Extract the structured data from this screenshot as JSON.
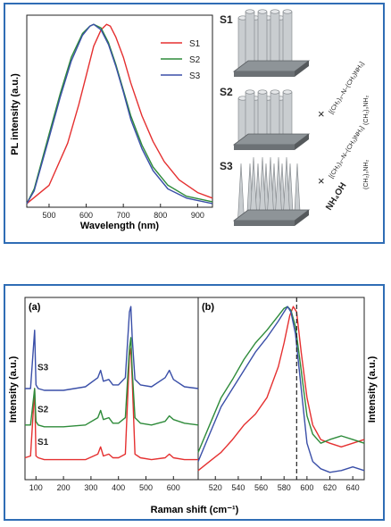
{
  "chart_data": [
    {
      "id": "pl",
      "type": "line",
      "xlabel": "Wavelength (nm)",
      "ylabel": "PL intensity (a.u.)",
      "xlim": [
        440,
        940
      ],
      "ylim": [
        0,
        1.05
      ],
      "xticks": [
        500,
        600,
        700,
        800,
        900
      ],
      "grid": false,
      "legend_position": "top-right",
      "series": [
        {
          "name": "S1",
          "color": "#e53030",
          "x": [
            440,
            500,
            550,
            580,
            600,
            620,
            640,
            655,
            665,
            680,
            700,
            720,
            750,
            780,
            810,
            850,
            900,
            940
          ],
          "y": [
            0.02,
            0.12,
            0.35,
            0.56,
            0.72,
            0.88,
            0.97,
            1.0,
            0.99,
            0.93,
            0.82,
            0.68,
            0.5,
            0.36,
            0.25,
            0.15,
            0.08,
            0.05
          ]
        },
        {
          "name": "S2",
          "color": "#2e8b3a",
          "x": [
            440,
            460,
            500,
            530,
            560,
            590,
            610,
            620,
            640,
            660,
            680,
            700,
            720,
            750,
            780,
            820,
            870,
            940
          ],
          "y": [
            0.02,
            0.1,
            0.4,
            0.62,
            0.82,
            0.95,
            0.99,
            1.0,
            0.98,
            0.9,
            0.78,
            0.64,
            0.5,
            0.34,
            0.22,
            0.12,
            0.06,
            0.03
          ]
        },
        {
          "name": "S3",
          "color": "#3a4fa8",
          "x": [
            440,
            460,
            500,
            530,
            560,
            590,
            610,
            620,
            640,
            660,
            680,
            700,
            720,
            750,
            780,
            820,
            870,
            940
          ],
          "y": [
            0.02,
            0.09,
            0.38,
            0.6,
            0.8,
            0.94,
            0.99,
            1.0,
            0.97,
            0.89,
            0.77,
            0.63,
            0.48,
            0.32,
            0.2,
            0.1,
            0.05,
            0.02
          ]
        }
      ]
    },
    {
      "id": "raman-a",
      "type": "line",
      "panel_label": "(a)",
      "ylabel": "Intensity (a.u.)",
      "xlim": [
        60,
        690
      ],
      "ylim": [
        0,
        1.0
      ],
      "xticks": [
        100,
        200,
        300,
        400,
        500,
        600
      ],
      "grid": false,
      "series": [
        {
          "name": "S1",
          "color": "#e53030",
          "x": [
            60,
            80,
            95,
            100,
            108,
            130,
            200,
            280,
            325,
            335,
            345,
            365,
            380,
            400,
            425,
            440,
            445,
            450,
            460,
            480,
            520,
            570,
            585,
            600,
            640,
            690
          ],
          "y": [
            0.12,
            0.13,
            0.5,
            0.13,
            0.12,
            0.11,
            0.11,
            0.11,
            0.14,
            0.18,
            0.13,
            0.14,
            0.12,
            0.12,
            0.14,
            0.68,
            0.72,
            0.55,
            0.14,
            0.12,
            0.11,
            0.12,
            0.14,
            0.12,
            0.11,
            0.11
          ]
        },
        {
          "name": "S2",
          "color": "#2e8b3a",
          "x": [
            60,
            80,
            95,
            100,
            108,
            130,
            200,
            280,
            325,
            335,
            345,
            365,
            380,
            400,
            425,
            440,
            445,
            450,
            460,
            480,
            520,
            570,
            585,
            600,
            640,
            690
          ],
          "y": [
            0.3,
            0.3,
            0.5,
            0.32,
            0.3,
            0.29,
            0.29,
            0.3,
            0.34,
            0.38,
            0.33,
            0.34,
            0.31,
            0.31,
            0.34,
            0.72,
            0.78,
            0.6,
            0.34,
            0.31,
            0.3,
            0.32,
            0.35,
            0.33,
            0.31,
            0.3
          ]
        },
        {
          "name": "S3",
          "color": "#3a4fa8",
          "x": [
            60,
            80,
            95,
            100,
            108,
            130,
            200,
            280,
            325,
            335,
            345,
            365,
            380,
            400,
            425,
            440,
            445,
            450,
            460,
            480,
            520,
            570,
            585,
            600,
            640,
            690
          ],
          "y": [
            0.5,
            0.5,
            0.82,
            0.52,
            0.5,
            0.49,
            0.49,
            0.51,
            0.56,
            0.6,
            0.54,
            0.55,
            0.52,
            0.52,
            0.56,
            0.92,
            0.95,
            0.78,
            0.55,
            0.52,
            0.51,
            0.56,
            0.6,
            0.55,
            0.51,
            0.5
          ]
        }
      ]
    },
    {
      "id": "raman-b",
      "type": "line",
      "panel_label": "(b)",
      "ylabel": "Intensity (a.u.)",
      "xlim": [
        505,
        650
      ],
      "ylim": [
        0,
        1.0
      ],
      "xticks": [
        520,
        540,
        560,
        580,
        600,
        620,
        640
      ],
      "reference_line_x": 591,
      "grid": false,
      "series": [
        {
          "name": "S1",
          "color": "#e53030",
          "x": [
            505,
            515,
            525,
            535,
            545,
            555,
            565,
            575,
            580,
            585,
            588,
            591,
            595,
            600,
            605,
            612,
            620,
            630,
            640,
            650
          ],
          "y": [
            0.05,
            0.1,
            0.15,
            0.22,
            0.3,
            0.36,
            0.45,
            0.62,
            0.75,
            0.9,
            0.95,
            0.92,
            0.7,
            0.45,
            0.3,
            0.22,
            0.2,
            0.18,
            0.2,
            0.22
          ]
        },
        {
          "name": "S2",
          "color": "#2e8b3a",
          "x": [
            505,
            515,
            525,
            535,
            545,
            555,
            565,
            575,
            580,
            583,
            586,
            590,
            595,
            600,
            605,
            612,
            620,
            630,
            640,
            650
          ],
          "y": [
            0.15,
            0.3,
            0.45,
            0.55,
            0.66,
            0.75,
            0.82,
            0.9,
            0.94,
            0.95,
            0.93,
            0.84,
            0.6,
            0.35,
            0.25,
            0.2,
            0.22,
            0.24,
            0.22,
            0.2
          ]
        },
        {
          "name": "S3",
          "color": "#3a4fa8",
          "x": [
            505,
            515,
            525,
            535,
            545,
            555,
            565,
            575,
            580,
            583,
            586,
            590,
            595,
            600,
            605,
            612,
            620,
            630,
            640,
            650
          ],
          "y": [
            0.1,
            0.25,
            0.4,
            0.5,
            0.6,
            0.7,
            0.78,
            0.87,
            0.92,
            0.95,
            0.92,
            0.8,
            0.5,
            0.2,
            0.1,
            0.06,
            0.04,
            0.05,
            0.07,
            0.05
          ]
        }
      ]
    }
  ],
  "raman_shared_xlabel": "Raman shift (cm⁻¹)",
  "schematic": {
    "sample_labels": [
      "S1",
      "S2",
      "S3"
    ],
    "reagent_1": "×",
    "reagent_2": "×",
    "nh4oh": "NH₄OH",
    "chain_1": "[(CH₂)₃–N–(CH₂)NH₂]",
    "chain_2": "[(CH₂)₃–N–(CH₂)NH₂]",
    "chain_sub": "(CH₂)₃NH₂"
  }
}
